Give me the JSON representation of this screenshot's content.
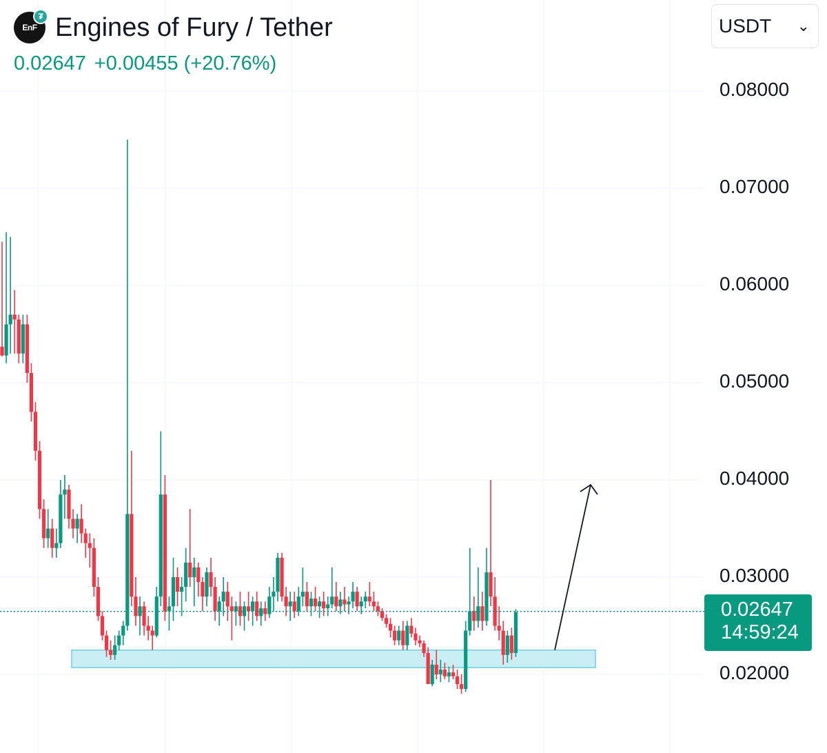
{
  "header": {
    "logo_text": "EnF",
    "badge_icon": "tether-icon",
    "pair_title": "Engines of Fury / Tether",
    "last_price": "0.02647",
    "change": "+0.00455 (+20.76%)",
    "change_color": "#089981"
  },
  "currency_select": {
    "value": "USDT",
    "icon": "chevron-down-icon"
  },
  "last_price_tag": {
    "price": "0.02647",
    "countdown": "14:59:24",
    "color": "#089981"
  },
  "colors": {
    "up": "#089981",
    "down": "#f23645",
    "zone_fill": "#c9eff5",
    "zone_stroke": "#6dd1df",
    "grid": "#f0f3fa"
  },
  "chart_data": {
    "type": "candlestick",
    "y_ticks": [
      "0.08000",
      "0.07000",
      "0.06000",
      "0.05000",
      "0.04000",
      "0.03000",
      "0.02000"
    ],
    "ylim": [
      0.0115,
      0.0885
    ],
    "last_price_line": 0.02647,
    "support_zone": {
      "low": 0.0207,
      "high": 0.0225
    },
    "projection_arrow": {
      "from": 0.0225,
      "to": 0.0395
    },
    "candles": [
      [
        0.0537,
        0.0645,
        0.0527,
        0.0528
      ],
      [
        0.0528,
        0.0655,
        0.052,
        0.056
      ],
      [
        0.056,
        0.065,
        0.053,
        0.057
      ],
      [
        0.057,
        0.0595,
        0.053,
        0.0565
      ],
      [
        0.0565,
        0.057,
        0.052,
        0.053
      ],
      [
        0.053,
        0.057,
        0.052,
        0.056
      ],
      [
        0.056,
        0.057,
        0.05,
        0.051
      ],
      [
        0.051,
        0.052,
        0.046,
        0.047
      ],
      [
        0.047,
        0.048,
        0.042,
        0.043
      ],
      [
        0.043,
        0.044,
        0.036,
        0.037
      ],
      [
        0.037,
        0.038,
        0.033,
        0.034
      ],
      [
        0.034,
        0.037,
        0.033,
        0.035
      ],
      [
        0.035,
        0.036,
        0.032,
        0.033
      ],
      [
        0.033,
        0.035,
        0.032,
        0.0335
      ],
      [
        0.0335,
        0.04,
        0.033,
        0.0385
      ],
      [
        0.0385,
        0.0405,
        0.036,
        0.039
      ],
      [
        0.039,
        0.0395,
        0.035,
        0.036
      ],
      [
        0.036,
        0.037,
        0.034,
        0.035
      ],
      [
        0.035,
        0.0365,
        0.0335,
        0.036
      ],
      [
        0.036,
        0.0375,
        0.0335,
        0.0345
      ],
      [
        0.0345,
        0.035,
        0.032,
        0.0335
      ],
      [
        0.0335,
        0.0345,
        0.031,
        0.033
      ],
      [
        0.033,
        0.034,
        0.028,
        0.029
      ],
      [
        0.029,
        0.03,
        0.0255,
        0.026
      ],
      [
        0.026,
        0.0265,
        0.0235,
        0.024
      ],
      [
        0.024,
        0.0245,
        0.0218,
        0.0225
      ],
      [
        0.0225,
        0.0235,
        0.0215,
        0.022
      ],
      [
        0.022,
        0.024,
        0.0215,
        0.023
      ],
      [
        0.023,
        0.0245,
        0.0225,
        0.024
      ],
      [
        0.024,
        0.0255,
        0.023,
        0.025
      ],
      [
        0.025,
        0.075,
        0.0245,
        0.0365
      ],
      [
        0.0365,
        0.043,
        0.027,
        0.028
      ],
      [
        0.028,
        0.03,
        0.025,
        0.026
      ],
      [
        0.026,
        0.028,
        0.024,
        0.027
      ],
      [
        0.027,
        0.0275,
        0.024,
        0.025
      ],
      [
        0.025,
        0.026,
        0.0235,
        0.0245
      ],
      [
        0.0245,
        0.025,
        0.0225,
        0.024
      ],
      [
        0.024,
        0.029,
        0.0238,
        0.028
      ],
      [
        0.028,
        0.045,
        0.027,
        0.0385
      ],
      [
        0.0385,
        0.0405,
        0.0255,
        0.0265
      ],
      [
        0.0265,
        0.028,
        0.0245,
        0.027
      ],
      [
        0.027,
        0.032,
        0.0255,
        0.03
      ],
      [
        0.03,
        0.031,
        0.027,
        0.0285
      ],
      [
        0.0285,
        0.03,
        0.026,
        0.029
      ],
      [
        0.029,
        0.033,
        0.0275,
        0.0315
      ],
      [
        0.0315,
        0.037,
        0.029,
        0.03
      ],
      [
        0.03,
        0.032,
        0.027,
        0.031
      ],
      [
        0.031,
        0.0315,
        0.028,
        0.0295
      ],
      [
        0.0295,
        0.03,
        0.0265,
        0.028
      ],
      [
        0.028,
        0.031,
        0.027,
        0.0305
      ],
      [
        0.0305,
        0.032,
        0.028,
        0.029
      ],
      [
        0.029,
        0.03,
        0.0255,
        0.0265
      ],
      [
        0.0265,
        0.028,
        0.025,
        0.0275
      ],
      [
        0.0275,
        0.03,
        0.026,
        0.0285
      ],
      [
        0.0285,
        0.0295,
        0.0255,
        0.027
      ],
      [
        0.027,
        0.028,
        0.0235,
        0.0265
      ],
      [
        0.0265,
        0.0275,
        0.025,
        0.027
      ],
      [
        0.027,
        0.0285,
        0.025,
        0.026
      ],
      [
        0.026,
        0.0275,
        0.0245,
        0.027
      ],
      [
        0.027,
        0.0285,
        0.0255,
        0.0265
      ],
      [
        0.0265,
        0.028,
        0.025,
        0.0275
      ],
      [
        0.0275,
        0.0285,
        0.0255,
        0.026
      ],
      [
        0.026,
        0.0275,
        0.025,
        0.0268
      ],
      [
        0.0268,
        0.0275,
        0.0255,
        0.0262
      ],
      [
        0.0262,
        0.029,
        0.0258,
        0.028
      ],
      [
        0.028,
        0.03,
        0.0265,
        0.0285
      ],
      [
        0.0285,
        0.0325,
        0.0275,
        0.032
      ],
      [
        0.032,
        0.0325,
        0.0275,
        0.028
      ],
      [
        0.028,
        0.029,
        0.026,
        0.027
      ],
      [
        0.027,
        0.0285,
        0.0255,
        0.0275
      ],
      [
        0.0275,
        0.0285,
        0.0258,
        0.0265
      ],
      [
        0.0265,
        0.029,
        0.026,
        0.028
      ],
      [
        0.028,
        0.031,
        0.027,
        0.0285
      ],
      [
        0.0285,
        0.0295,
        0.0265,
        0.027
      ],
      [
        0.027,
        0.0285,
        0.026,
        0.0278
      ],
      [
        0.0278,
        0.029,
        0.0265,
        0.027
      ],
      [
        0.027,
        0.028,
        0.0258,
        0.0275
      ],
      [
        0.0275,
        0.0285,
        0.026,
        0.0268
      ],
      [
        0.0268,
        0.028,
        0.026,
        0.0272
      ],
      [
        0.0272,
        0.031,
        0.0268,
        0.028
      ],
      [
        0.028,
        0.0295,
        0.0265,
        0.027
      ],
      [
        0.027,
        0.0285,
        0.0262,
        0.0277
      ],
      [
        0.0277,
        0.029,
        0.0265,
        0.0272
      ],
      [
        0.0272,
        0.028,
        0.0262,
        0.0275
      ],
      [
        0.0275,
        0.0295,
        0.0268,
        0.0285
      ],
      [
        0.0285,
        0.029,
        0.0265,
        0.027
      ],
      [
        0.027,
        0.028,
        0.0262,
        0.0275
      ],
      [
        0.0275,
        0.0285,
        0.0268,
        0.028
      ],
      [
        0.028,
        0.0295,
        0.027,
        0.0275
      ],
      [
        0.0275,
        0.0285,
        0.0265,
        0.027
      ],
      [
        0.027,
        0.0275,
        0.026,
        0.0265
      ],
      [
        0.0265,
        0.0268,
        0.0255,
        0.0258
      ],
      [
        0.0258,
        0.0262,
        0.0248,
        0.0252
      ],
      [
        0.0252,
        0.0258,
        0.0238,
        0.0245
      ],
      [
        0.0245,
        0.025,
        0.023,
        0.0235
      ],
      [
        0.0235,
        0.025,
        0.023,
        0.0245
      ],
      [
        0.0245,
        0.0255,
        0.0225,
        0.023
      ],
      [
        0.023,
        0.0255,
        0.0225,
        0.025
      ],
      [
        0.025,
        0.0258,
        0.0238,
        0.0242
      ],
      [
        0.0242,
        0.0248,
        0.023,
        0.0235
      ],
      [
        0.0235,
        0.024,
        0.0228,
        0.0232
      ],
      [
        0.0232,
        0.0235,
        0.0218,
        0.0222
      ],
      [
        0.0222,
        0.0228,
        0.019,
        0.019
      ],
      [
        0.019,
        0.0215,
        0.0188,
        0.021
      ],
      [
        0.021,
        0.0225,
        0.0195,
        0.02
      ],
      [
        0.02,
        0.0215,
        0.0192,
        0.0205
      ],
      [
        0.0205,
        0.0212,
        0.0195,
        0.0198
      ],
      [
        0.0198,
        0.0208,
        0.0192,
        0.0202
      ],
      [
        0.0202,
        0.021,
        0.0195,
        0.0198
      ],
      [
        0.0198,
        0.0205,
        0.0185,
        0.019
      ],
      [
        0.019,
        0.02,
        0.018,
        0.0185
      ],
      [
        0.0185,
        0.0255,
        0.0182,
        0.0245
      ],
      [
        0.0245,
        0.033,
        0.024,
        0.0265
      ],
      [
        0.0265,
        0.028,
        0.0245,
        0.0255
      ],
      [
        0.0255,
        0.031,
        0.0248,
        0.027
      ],
      [
        0.027,
        0.0285,
        0.0245,
        0.0255
      ],
      [
        0.0255,
        0.033,
        0.025,
        0.0305
      ],
      [
        0.0305,
        0.04,
        0.027,
        0.028
      ],
      [
        0.028,
        0.03,
        0.0245,
        0.025
      ],
      [
        0.025,
        0.027,
        0.0235,
        0.0245
      ],
      [
        0.0245,
        0.0255,
        0.021,
        0.022
      ],
      [
        0.022,
        0.0245,
        0.0212,
        0.024
      ],
      [
        0.024,
        0.0248,
        0.0215,
        0.0222
      ],
      [
        0.0222,
        0.0267,
        0.0218,
        0.0264
      ]
    ]
  }
}
